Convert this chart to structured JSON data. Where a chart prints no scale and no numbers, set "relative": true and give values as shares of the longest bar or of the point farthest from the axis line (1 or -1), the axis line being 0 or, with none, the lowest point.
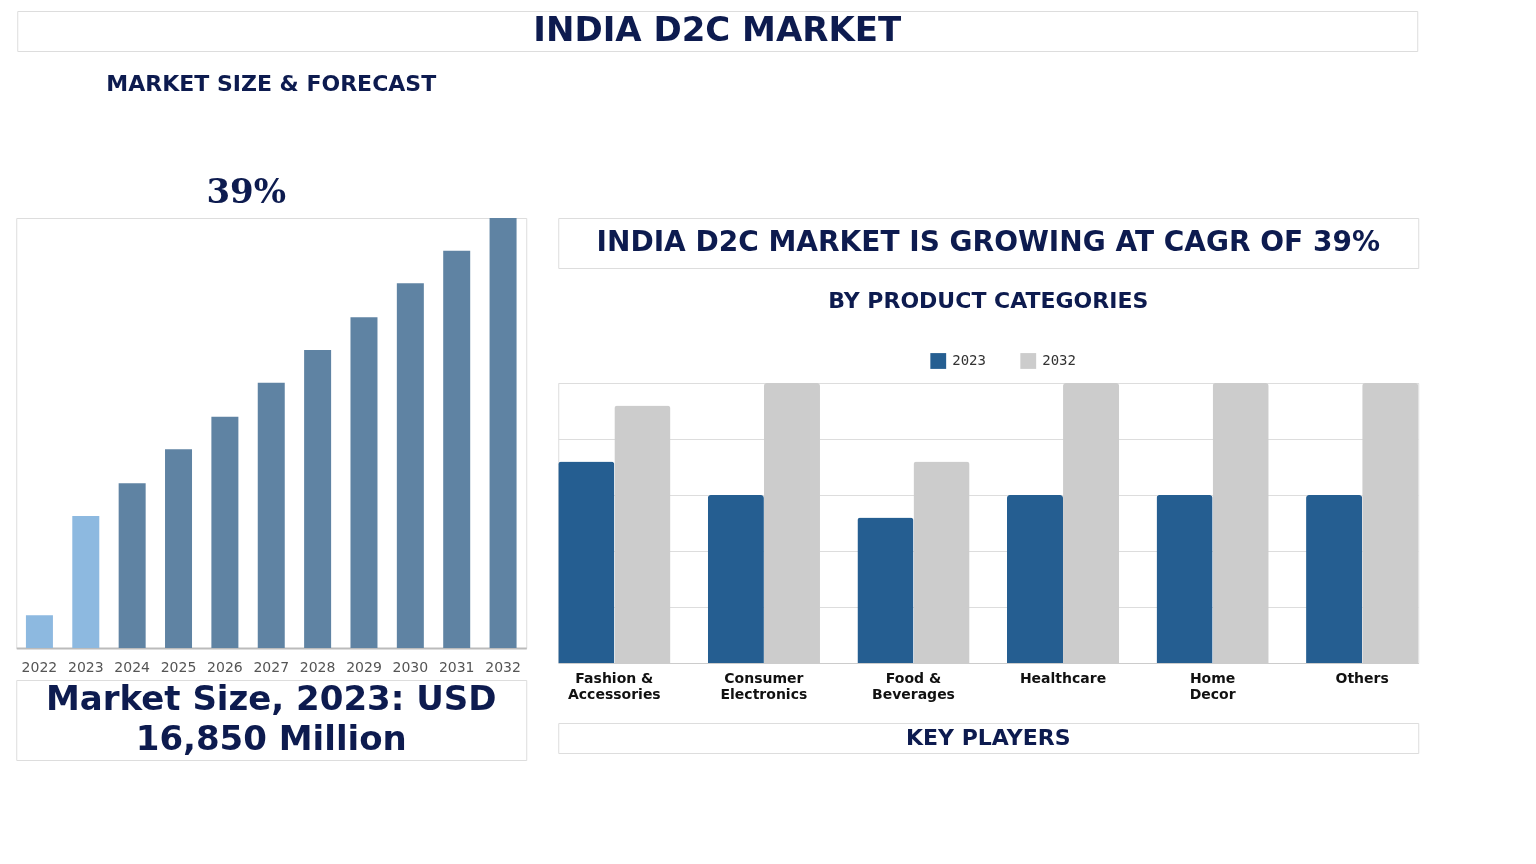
{
  "chart_data": [
    {
      "type": "other",
      "title": "INDIA D2C MARKET"
    },
    {
      "type": "bar",
      "title": "MARKET SIZE & FORECAST",
      "relative": true,
      "categories": [
        "2022",
        "2023",
        "2024",
        "2025",
        "2026",
        "2027",
        "2028",
        "2029",
        "2030",
        "2031",
        "2032"
      ],
      "values": [
        0.076,
        0.307,
        0.383,
        0.462,
        0.538,
        0.617,
        0.693,
        0.769,
        0.848,
        0.924,
        1.0
      ],
      "colors": [
        "#8db9e0",
        "#8db9e0",
        "#5f83a3",
        "#5f83a3",
        "#5f83a3",
        "#5f83a3",
        "#5f83a3",
        "#5f83a3",
        "#5f83a3",
        "#5f83a3",
        "#5f83a3"
      ],
      "annotations": [
        "39%",
        "Market Size, 2023: USD 16,850 Million"
      ]
    },
    {
      "type": "other",
      "title": "INDIA D2C MARKET IS GROWING AT CAGR OF 39%"
    },
    {
      "type": "bar",
      "title": "BY PRODUCT CATEGORIES",
      "relative": true,
      "grid": "y",
      "legend": "top",
      "categories": [
        "Fashion & Accessories",
        "Consumer Electronics",
        "Food & Beverages",
        "Healthcare",
        "Home Decor",
        "Others"
      ],
      "series": [
        {
          "name": "2023",
          "color": "#255e91",
          "values": [
            0.72,
            0.6,
            0.52,
            0.6,
            0.6,
            0.6
          ]
        },
        {
          "name": "2032",
          "color": "#cccccc",
          "values": [
            0.92,
            1.0,
            0.72,
            1.0,
            1.0,
            1.0
          ]
        }
      ]
    },
    {
      "type": "other",
      "title": "KEY PLAYERS"
    }
  ]
}
